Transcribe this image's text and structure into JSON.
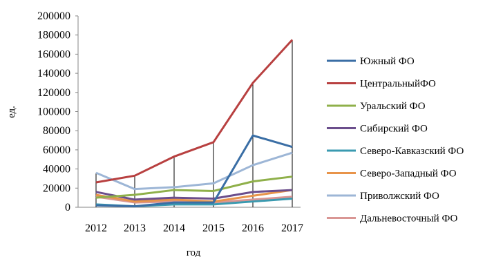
{
  "chart_data": {
    "type": "line",
    "title": "",
    "xlabel": "год",
    "ylabel": "ед.",
    "categories": [
      "2012",
      "2013",
      "2014",
      "2015",
      "2016",
      "2017"
    ],
    "ylim": [
      0,
      200000
    ],
    "yticks": [
      0,
      20000,
      40000,
      60000,
      80000,
      100000,
      120000,
      140000,
      160000,
      180000,
      200000
    ],
    "drop_lines": true,
    "legend_position": "right",
    "series": [
      {
        "name": "Южный ФО",
        "color": "#3a6ea5",
        "values": [
          2000,
          1000,
          5000,
          5000,
          75000,
          63000
        ]
      },
      {
        "name": "ЦентральныйФО",
        "color": "#b84040",
        "values": [
          26000,
          33000,
          53000,
          68000,
          130000,
          175000
        ]
      },
      {
        "name": "Уральский ФО",
        "color": "#8fb04a",
        "values": [
          10000,
          13000,
          18000,
          17000,
          27000,
          32000
        ]
      },
      {
        "name": "Сибирский ФО",
        "color": "#6b4e8c",
        "values": [
          16000,
          8000,
          10000,
          9000,
          16000,
          18000
        ]
      },
      {
        "name": "Северо-Кавказский ФО",
        "color": "#3a9ab0",
        "values": [
          3000,
          1000,
          3000,
          3000,
          6000,
          9000
        ]
      },
      {
        "name": "Северо-Западный ФО",
        "color": "#e8944a",
        "values": [
          13000,
          6000,
          8000,
          6000,
          12000,
          18000
        ]
      },
      {
        "name": "Приволжский ФО",
        "color": "#9db6d6",
        "values": [
          36000,
          19000,
          21000,
          25000,
          44000,
          57000
        ]
      },
      {
        "name": "Дальневосточный ФО",
        "color": "#d99694",
        "values": [
          11000,
          5000,
          6000,
          5000,
          8000,
          11000
        ]
      }
    ]
  }
}
